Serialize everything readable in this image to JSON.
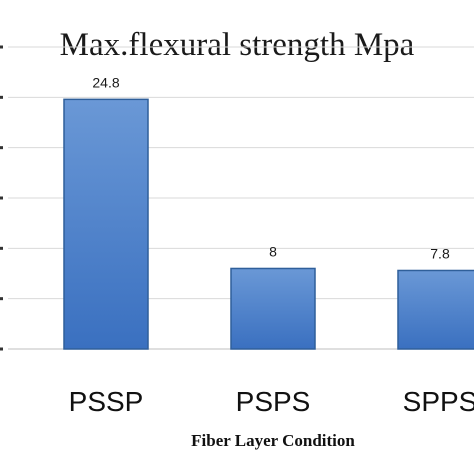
{
  "chart_data": {
    "type": "bar",
    "title": "Max.flexural strength Mpa",
    "xlabel": "Fiber Layer Condition",
    "ylabel": "",
    "categories": [
      "PSSP",
      "PSPS",
      "SPPS"
    ],
    "series": [
      {
        "values": [
          24.8,
          8,
          7.8
        ]
      }
    ],
    "data_labels": [
      "24.8",
      "8",
      "7.8"
    ],
    "ylim": [
      0,
      30
    ],
    "ytick_step": 5,
    "grid": true,
    "legend": "none",
    "bar_color_top": "#6a98d6",
    "bar_color_bottom": "#3a70c0",
    "bar_border": "#2f5f9a",
    "grid_color": "#d9d9d9"
  }
}
